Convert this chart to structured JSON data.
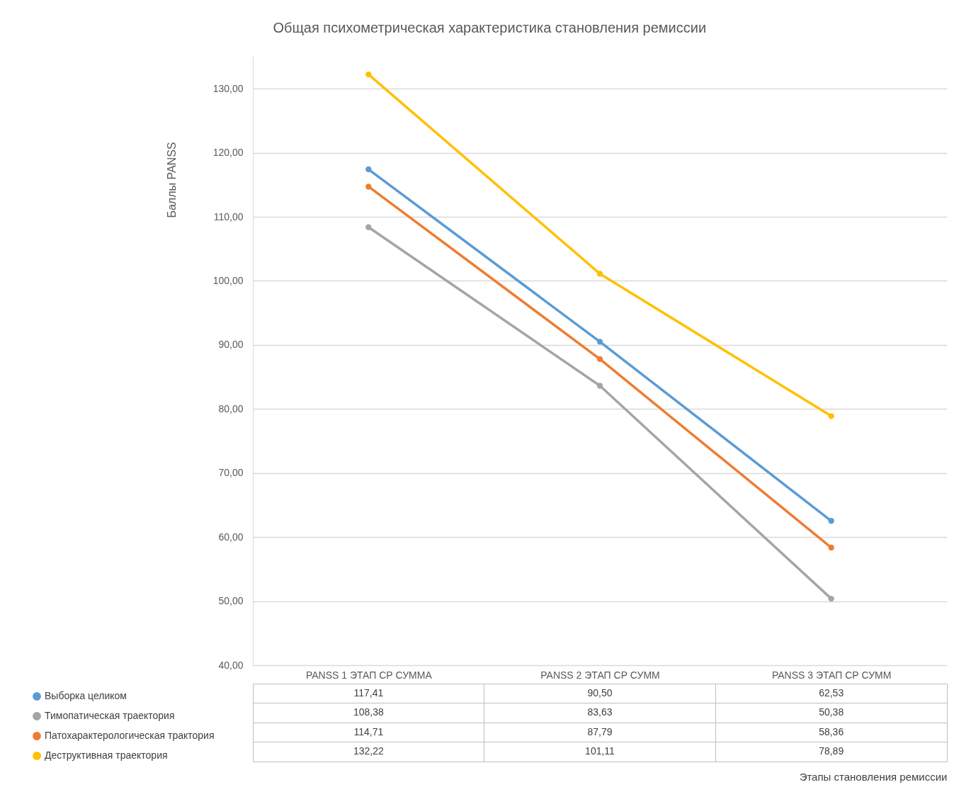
{
  "chart_data": {
    "type": "line",
    "title": "Общая психометрическая характеристика становления ремиссии",
    "annotations": [
      "Этапы становления ремиссии"
    ],
    "ylabel": "Баллы PANSS",
    "categories": [
      "PANSS 1 ЭТАП  СР СУММА",
      "PANSS 2 ЭТАП СР СУММ",
      "PANSS 3 ЭТАП СР СУММ"
    ],
    "series": [
      {
        "name": "Выборка целиком",
        "color": "#5b9bd5",
        "values": [
          117.41,
          90.5,
          62.53
        ],
        "value_labels": [
          "117,41",
          "90,50",
          "62,53"
        ]
      },
      {
        "name": "Тимопатическая траектория",
        "color": "#a5a5a5",
        "values": [
          108.38,
          83.63,
          50.38
        ],
        "value_labels": [
          "108,38",
          "83,63",
          "50,38"
        ]
      },
      {
        "name": "Патохарактерологическая трактория",
        "color": "#ed7d31",
        "values": [
          114.71,
          87.79,
          58.36
        ],
        "value_labels": [
          "114,71",
          "87,79",
          "58,36"
        ]
      },
      {
        "name": "Деструктивная траектория",
        "color": "#ffc000",
        "values": [
          132.22,
          101.11,
          78.89
        ],
        "value_labels": [
          "132,22",
          "101,11",
          "78,89"
        ]
      }
    ],
    "ylim": [
      40,
      135
    ],
    "yticks": [
      {
        "value": 40,
        "label": "40,00"
      },
      {
        "value": 50,
        "label": "50,00"
      },
      {
        "value": 60,
        "label": "60,00"
      },
      {
        "value": 70,
        "label": "70,00"
      },
      {
        "value": 80,
        "label": "80,00"
      },
      {
        "value": 90,
        "label": "90,00"
      },
      {
        "value": 100,
        "label": "100,00"
      },
      {
        "value": 110,
        "label": "110,00"
      },
      {
        "value": 120,
        "label": "120,00"
      },
      {
        "value": 130,
        "label": "130,00"
      }
    ],
    "grid": "y",
    "legend": "bottom left",
    "marker": "circle"
  }
}
